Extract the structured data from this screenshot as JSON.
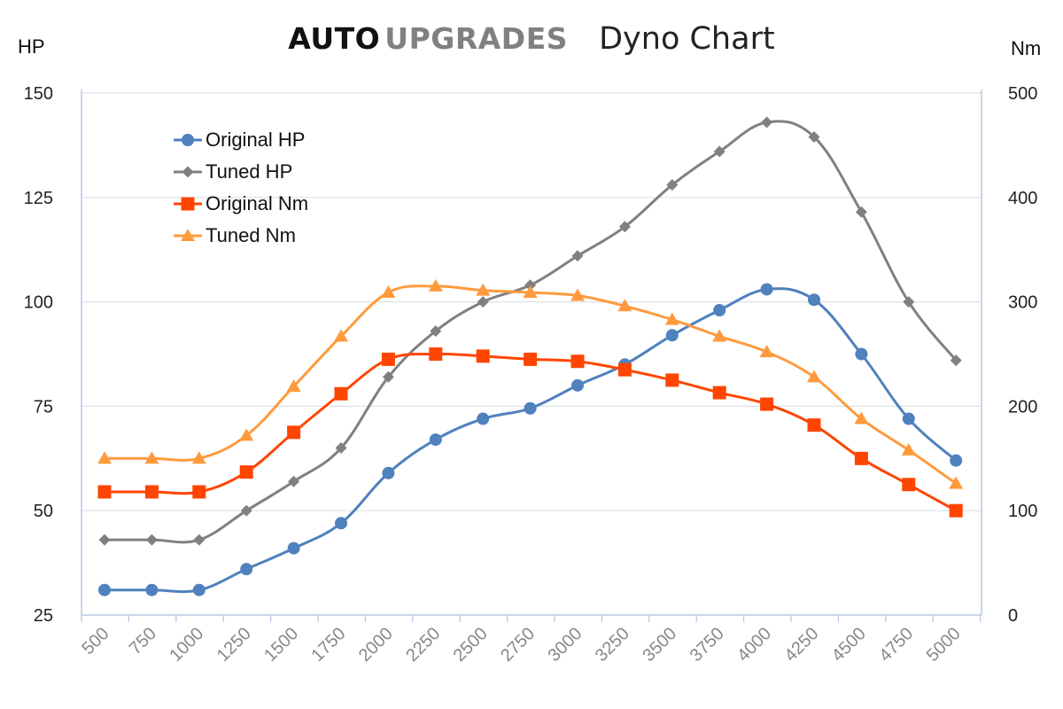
{
  "header": {
    "brand_auto": "AUTO",
    "brand_upgrades": "UPGRADES",
    "subtitle": "Dyno Chart",
    "left_unit": "HP",
    "right_unit": "Nm"
  },
  "colors": {
    "original_hp": "#4f81bd",
    "tuned_hp": "#808080",
    "original_nm": "#ff4500",
    "tuned_nm": "#ff9a3c",
    "grid": "#dde1e6",
    "axis": "#b8c9e6",
    "tick_label": "#888888"
  },
  "chart_data": {
    "type": "line",
    "title": "AUTO UPGRADES Dyno Chart",
    "x": [
      500,
      750,
      1000,
      1250,
      1500,
      1750,
      2000,
      2250,
      2500,
      2750,
      3000,
      3250,
      3500,
      3750,
      4000,
      4250,
      4500,
      4750,
      5000
    ],
    "x_tick_labels": [
      "500",
      "750",
      "1000",
      "1250",
      "1500",
      "1750",
      "2000",
      "2250",
      "2500",
      "2750",
      "3000",
      "3250",
      "3500",
      "3750",
      "4000",
      "4250",
      "4500",
      "4750",
      "5000"
    ],
    "y_left": {
      "label": "HP",
      "ylim": [
        25,
        150
      ],
      "ticks": [
        25,
        50,
        75,
        100,
        125,
        150
      ]
    },
    "y_right": {
      "label": "Nm",
      "ylim": [
        0,
        500
      ],
      "ticks": [
        0,
        100,
        200,
        300,
        400,
        500
      ]
    },
    "grid": true,
    "legend_position": "top-left",
    "series": [
      {
        "name": "Original HP",
        "axis": "left",
        "marker": "circle",
        "color": "#4f81bd",
        "values": [
          31,
          31,
          31,
          36,
          41,
          47,
          59,
          67,
          72,
          74.5,
          80,
          85,
          92,
          98,
          103,
          100.5,
          87.5,
          72,
          62
        ]
      },
      {
        "name": "Tuned HP",
        "axis": "left",
        "marker": "diamond",
        "color": "#808080",
        "values": [
          43,
          43,
          43,
          50,
          57,
          65,
          82,
          93,
          100,
          104,
          111,
          118,
          128,
          136,
          143,
          139.5,
          121.5,
          100,
          86
        ]
      },
      {
        "name": "Original Nm",
        "axis": "right",
        "marker": "square",
        "color": "#ff4500",
        "values": [
          118,
          118,
          118,
          137,
          175,
          212,
          245,
          250,
          248,
          245,
          243,
          235,
          225,
          213,
          202,
          182,
          150,
          125,
          100
        ]
      },
      {
        "name": "Tuned Nm",
        "axis": "right",
        "marker": "triangle",
        "color": "#ff9a3c",
        "values": [
          150,
          150,
          150,
          172,
          219,
          267,
          309,
          315,
          311,
          309,
          306,
          296,
          283,
          267,
          252,
          228,
          188,
          158,
          126
        ]
      }
    ]
  }
}
